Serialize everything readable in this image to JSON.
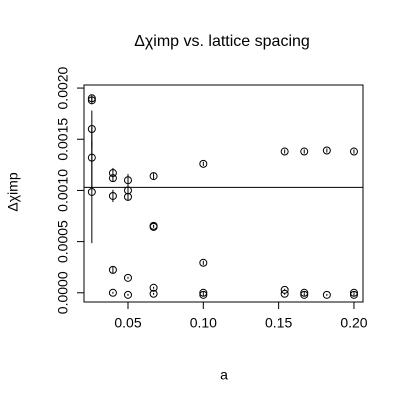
{
  "chart_data": {
    "type": "scatter",
    "title": "Δχimp vs. lattice spacing",
    "x_label": "a",
    "y_label": "Δχimp",
    "xlim": [
      0.0208,
      0.206
    ],
    "xticks": [
      {
        "value": 0.05,
        "label": "0.05"
      },
      {
        "value": 0.1,
        "label": "0.10"
      },
      {
        "value": 0.15,
        "label": "0.15"
      },
      {
        "value": 0.2,
        "label": "0.20"
      }
    ],
    "ylim": [
      -9e-05,
      0.00203
    ],
    "yticks": [
      {
        "value": 0,
        "label": "0.0000"
      },
      {
        "value": 0.0005,
        "label": "0.0005"
      },
      {
        "value": 0.001,
        "label": "0.0010"
      },
      {
        "value": 0.0015,
        "label": "0.0015"
      },
      {
        "value": 0.002,
        "label": "0.0020"
      }
    ],
    "hline": 0.00103,
    "series": [
      {
        "color": "#000000",
        "x": [
          0.026,
          0.026,
          0.026,
          0.026,
          0.026,
          0.04,
          0.04,
          0.04,
          0.04,
          0.04,
          0.05,
          0.05,
          0.05,
          0.05,
          0.05,
          0.067,
          0.067,
          0.067,
          0.067,
          0.067,
          0.1,
          0.1,
          0.1,
          0.1,
          0.154,
          0.154,
          0.154,
          0.167,
          0.167,
          0.167,
          0.182,
          0.182,
          0.2,
          0.2,
          0.2
        ],
        "values": [
          0.0019,
          0.00188,
          0.0016,
          0.00132,
          0.000985,
          0.00117,
          0.00112,
          0.000946,
          0.000224,
          0,
          0.0011,
          0.001,
          0.000937,
          0.000146,
          -2e-05,
          0.00114,
          0.000654,
          0.000644,
          4.9e-05,
          -1e-05,
          0.00126,
          0.000293,
          0,
          -2e-05,
          0.00138,
          2.9e-05,
          -1e-05,
          0.00138,
          0,
          -2e-05,
          0.00139,
          -2e-05,
          0.00138,
          0,
          -2e-05
        ],
        "errors": [
          3e-05,
          3e-05,
          0.00018,
          0.0003,
          0.0005,
          5e-05,
          3e-05,
          6e-05,
          3e-05,
          1e-05,
          6e-05,
          3e-05,
          3e-05,
          1e-05,
          1e-05,
          3e-05,
          1e-05,
          1e-05,
          1e-05,
          1e-05,
          2e-05,
          2e-05,
          1e-05,
          1e-05,
          2e-05,
          1e-05,
          1e-05,
          2e-05,
          1e-05,
          1e-05,
          2e-05,
          1e-05,
          2e-05,
          1e-05,
          1e-05
        ]
      }
    ]
  }
}
